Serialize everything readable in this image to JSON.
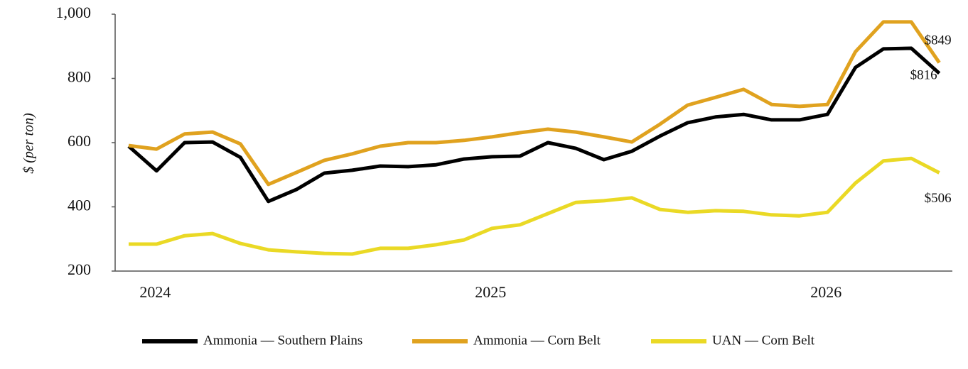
{
  "chart_data": {
    "type": "line",
    "y_label": "$ (per ton)",
    "categories": [
      null,
      "2024",
      null,
      null,
      null,
      null,
      null,
      null,
      null,
      null,
      null,
      null,
      null,
      "2025",
      null,
      null,
      null,
      null,
      null,
      null,
      null,
      null,
      null,
      null,
      null,
      "2026",
      null,
      null,
      null,
      null
    ],
    "ylim": [
      200,
      1000
    ],
    "yticks": [
      200,
      400,
      600,
      800,
      {
        "value": 1000,
        "label": "1,000"
      }
    ],
    "series": [
      {
        "name": "Ammonia — Southern Plains",
        "color": "#000000",
        "values": [
          589,
          512,
          600,
          602,
          554,
          417,
          454,
          505,
          514,
          527,
          525,
          531,
          549,
          556,
          558,
          600,
          582,
          547,
          573,
          620,
          662,
          680,
          688,
          671,
          671,
          688,
          834,
          892,
          894,
          816
        ],
        "value_labels": [
          null,
          null,
          null,
          null,
          null,
          null,
          null,
          null,
          null,
          null,
          null,
          null,
          null,
          null,
          null,
          null,
          null,
          null,
          null,
          null,
          null,
          null,
          null,
          null,
          null,
          null,
          null,
          null,
          null,
          "$816"
        ]
      },
      {
        "name": "Ammonia — Corn Belt",
        "color": "#e0a21f",
        "values": [
          591,
          580,
          627,
          633,
          596,
          470,
          507,
          545,
          565,
          589,
          600,
          600,
          607,
          618,
          631,
          642,
          633,
          618,
          602,
          657,
          717,
          741,
          766,
          719,
          713,
          719,
          883,
          976,
          976,
          849
        ],
        "value_labels": [
          null,
          null,
          null,
          null,
          null,
          null,
          null,
          null,
          null,
          null,
          null,
          null,
          null,
          null,
          null,
          null,
          null,
          null,
          null,
          null,
          null,
          null,
          null,
          null,
          null,
          null,
          null,
          null,
          null,
          "$849"
        ]
      },
      {
        "name": "UAN — Corn Belt",
        "color": "#ead925",
        "values": [
          284,
          284,
          310,
          317,
          286,
          266,
          260,
          255,
          253,
          271,
          271,
          282,
          297,
          333,
          344,
          379,
          414,
          419,
          428,
          392,
          383,
          388,
          386,
          375,
          372,
          383,
          474,
          543,
          551,
          506
        ],
        "value_labels": [
          null,
          null,
          null,
          null,
          null,
          null,
          null,
          null,
          null,
          null,
          null,
          null,
          null,
          null,
          null,
          null,
          null,
          null,
          null,
          null,
          null,
          null,
          null,
          null,
          null,
          null,
          null,
          null,
          null,
          "$506"
        ]
      }
    ]
  }
}
